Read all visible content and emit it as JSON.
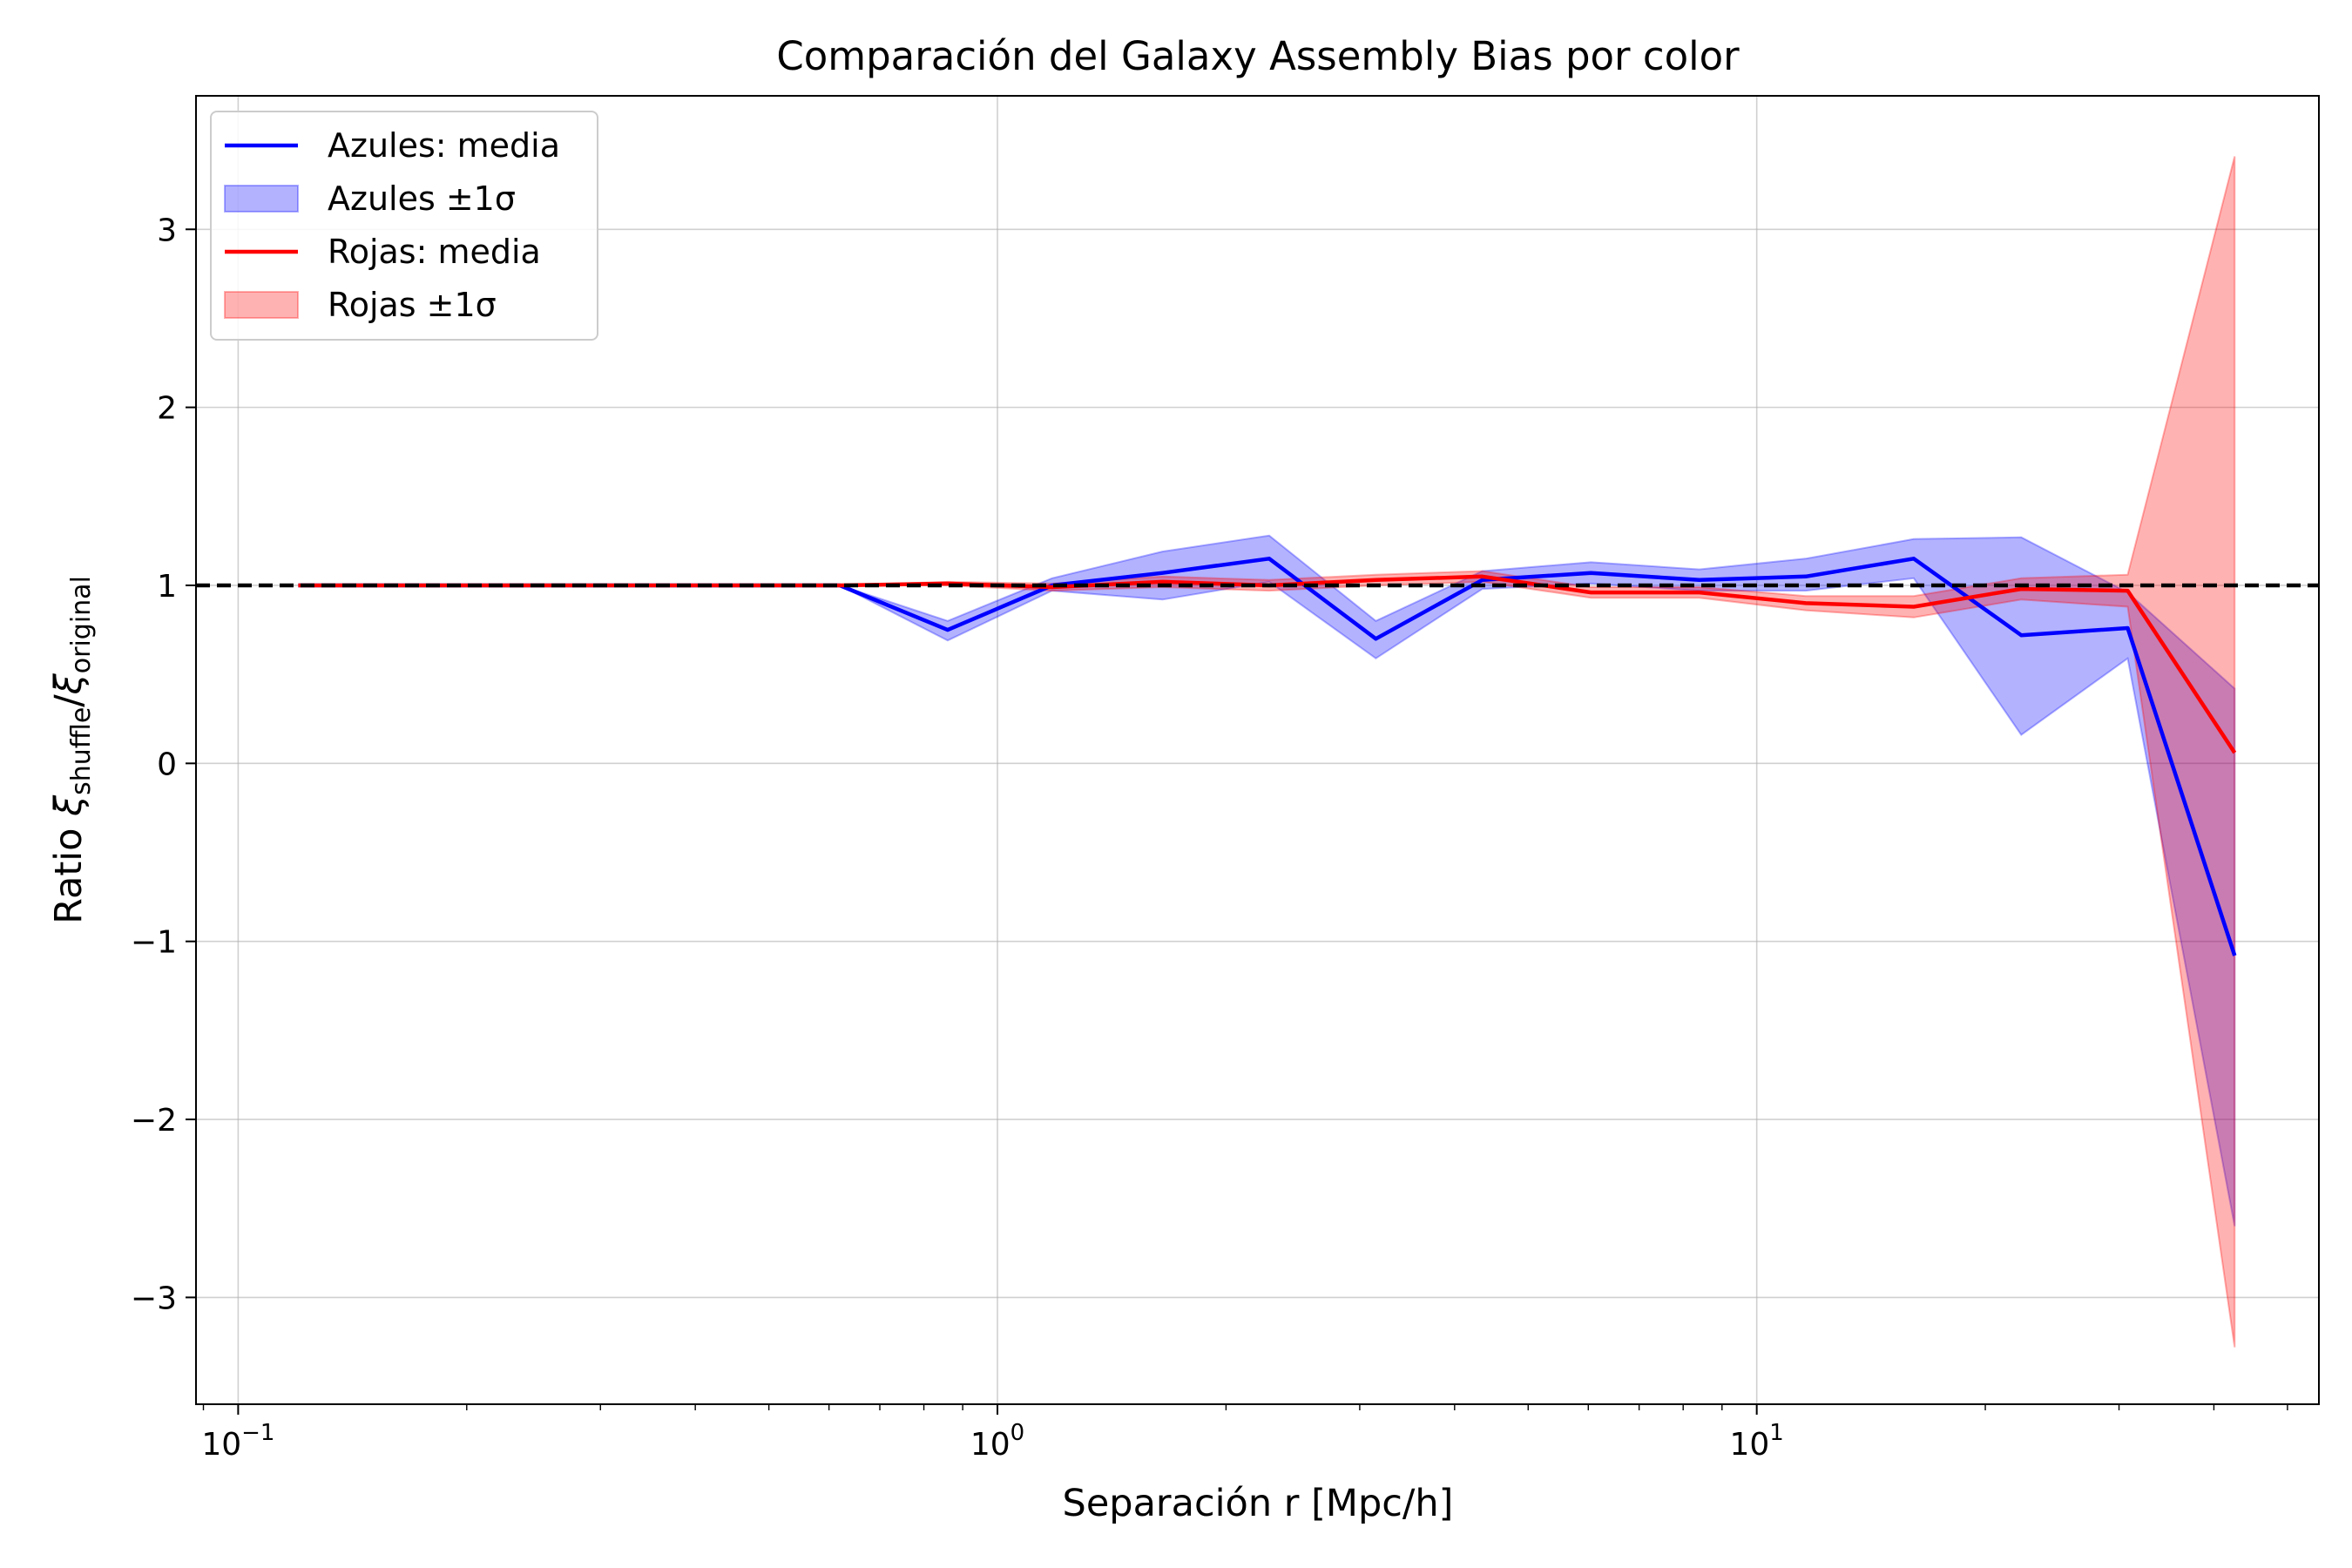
{
  "chart_data": {
    "type": "line",
    "title": "Comparación del Galaxy Assembly Bias por color",
    "xlabel": "Separación r [Mpc/h]",
    "ylabel": {
      "prefix": "Ratio ",
      "symbol": "ξ",
      "sub_numerator": "shuffle",
      "separator": "/",
      "sub_denominator": "original"
    },
    "xscale": "log",
    "xlim": [
      0.088,
      55
    ],
    "ylim": [
      -3.6,
      3.75
    ],
    "grid": true,
    "legend_position": "top-left",
    "x_ticks": [
      {
        "value": 0.1,
        "base": "10",
        "exp": "−1"
      },
      {
        "value": 1,
        "base": "10",
        "exp": "0"
      },
      {
        "value": 10,
        "base": "10",
        "exp": "1"
      }
    ],
    "y_ticks": [
      {
        "value": -3,
        "label": "−3"
      },
      {
        "value": -2,
        "label": "−2"
      },
      {
        "value": -1,
        "label": "−1"
      },
      {
        "value": 0,
        "label": "0"
      },
      {
        "value": 1,
        "label": "1"
      },
      {
        "value": 2,
        "label": "2"
      },
      {
        "value": 3,
        "label": "3"
      }
    ],
    "reference_line": {
      "y": 1,
      "style": "dashed",
      "color": "#000000"
    },
    "legend": [
      {
        "label": "Azules: media",
        "kind": "line",
        "color": "#0000ff"
      },
      {
        "label": "Azules ±1σ",
        "kind": "band",
        "color": "#0000ff"
      },
      {
        "label": "Rojas: media",
        "kind": "line",
        "color": "#ff0000"
      },
      {
        "label": "Rojas ±1σ",
        "kind": "band",
        "color": "#ff0000"
      }
    ],
    "x": [
      0.12,
      0.165,
      0.23,
      0.32,
      0.45,
      0.62,
      0.86,
      1.18,
      1.65,
      2.28,
      3.15,
      4.35,
      6.05,
      8.4,
      11.6,
      16.1,
      22.3,
      30.8,
      42.6
    ],
    "series": [
      {
        "name": "Azules: media",
        "color": "#0000ff",
        "values": [
          1.0,
          1.0,
          1.0,
          1.0,
          1.0,
          1.0,
          0.75,
          1.0,
          1.07,
          1.15,
          0.7,
          1.03,
          1.07,
          1.03,
          1.05,
          1.15,
          0.72,
          0.76,
          -1.08
        ],
        "lower": [
          1.0,
          1.0,
          1.0,
          1.0,
          1.0,
          1.0,
          0.69,
          0.97,
          0.92,
          1.02,
          0.59,
          0.98,
          1.01,
          0.97,
          0.97,
          1.04,
          0.16,
          0.59,
          -2.6
        ],
        "upper": [
          1.0,
          1.0,
          1.0,
          1.0,
          1.0,
          1.0,
          0.8,
          1.04,
          1.19,
          1.28,
          0.8,
          1.08,
          1.13,
          1.09,
          1.15,
          1.26,
          1.27,
          0.96,
          0.42
        ]
      },
      {
        "name": "Rojas: media",
        "color": "#ff0000",
        "values": [
          1.0,
          1.0,
          1.0,
          1.0,
          1.0,
          1.0,
          1.01,
          0.99,
          1.02,
          1.0,
          1.03,
          1.05,
          0.96,
          0.96,
          0.9,
          0.88,
          0.98,
          0.97,
          0.06
        ],
        "lower": [
          1.0,
          1.0,
          1.0,
          1.0,
          1.0,
          1.0,
          1.0,
          0.97,
          0.99,
          0.97,
          1.0,
          1.02,
          0.93,
          0.93,
          0.86,
          0.82,
          0.92,
          0.88,
          -3.28
        ],
        "upper": [
          1.0,
          1.0,
          1.0,
          1.0,
          1.0,
          1.0,
          1.02,
          1.01,
          1.05,
          1.03,
          1.06,
          1.08,
          0.99,
          0.99,
          0.94,
          0.94,
          1.04,
          1.06,
          3.41
        ]
      }
    ]
  }
}
